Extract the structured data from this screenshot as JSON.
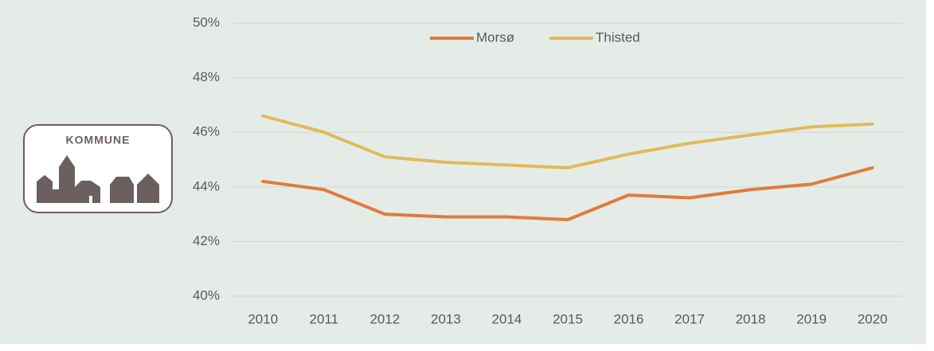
{
  "logo": "KOMMUNE",
  "chart_data": {
    "type": "line",
    "categories": [
      "2010",
      "2011",
      "2012",
      "2013",
      "2014",
      "2015",
      "2016",
      "2017",
      "2018",
      "2019",
      "2020"
    ],
    "series": [
      {
        "name": "Morsø",
        "color": "#e07b39",
        "values": [
          44.2,
          43.9,
          43.0,
          42.9,
          42.9,
          42.8,
          43.7,
          43.6,
          43.9,
          44.1,
          44.7
        ]
      },
      {
        "name": "Thisted",
        "color": "#e2b95a",
        "values": [
          46.6,
          46.0,
          45.1,
          44.9,
          44.8,
          44.7,
          45.2,
          45.6,
          45.9,
          46.2,
          46.3
        ]
      }
    ],
    "ylim": [
      40,
      50
    ],
    "yticks": [
      {
        "value": 40,
        "label": "40%"
      },
      {
        "value": 42,
        "label": "42%"
      },
      {
        "value": 44,
        "label": "44%"
      },
      {
        "value": 46,
        "label": "46%"
      },
      {
        "value": 48,
        "label": "48%"
      },
      {
        "value": 50,
        "label": "50%"
      }
    ],
    "grid": true,
    "legend": "top"
  }
}
